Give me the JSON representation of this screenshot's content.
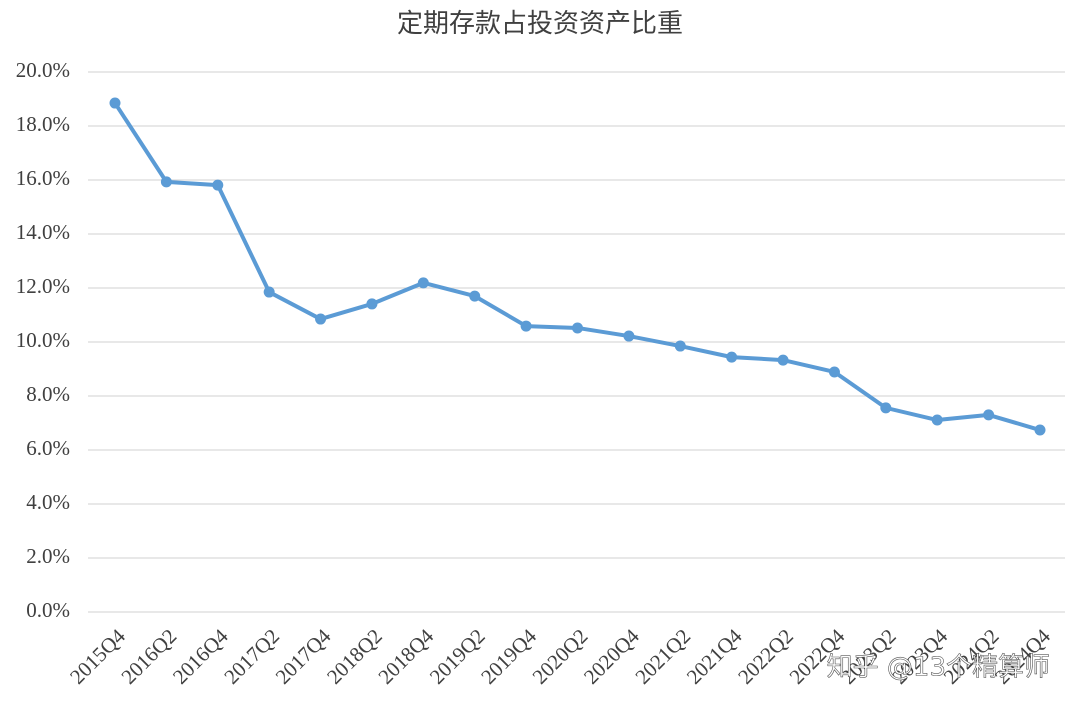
{
  "chart_data": {
    "type": "line",
    "title": "定期存款占投资资产比重",
    "categories": [
      "2015Q4",
      "2016Q2",
      "2016Q4",
      "2017Q2",
      "2017Q4",
      "2018Q2",
      "2018Q4",
      "2019Q2",
      "2019Q4",
      "2020Q2",
      "2020Q4",
      "2021Q2",
      "2021Q4",
      "2022Q2",
      "2022Q4",
      "2023Q2",
      "2023Q4",
      "2024Q2",
      "2024Q4"
    ],
    "values": [
      18.85,
      15.93,
      15.81,
      11.85,
      10.85,
      11.41,
      12.19,
      11.7,
      10.59,
      10.52,
      10.22,
      9.85,
      9.44,
      9.33,
      8.89,
      7.56,
      7.11,
      7.3,
      6.74
    ],
    "color": "#5b9bd5",
    "ylim": [
      0,
      20
    ],
    "yticks": [
      {
        "value": 0,
        "label": "0.0%"
      },
      {
        "value": 2,
        "label": "2.0%"
      },
      {
        "value": 4,
        "label": "4.0%"
      },
      {
        "value": 6,
        "label": "6.0%"
      },
      {
        "value": 8,
        "label": "8.0%"
      },
      {
        "value": 10,
        "label": "10.0%"
      },
      {
        "value": 12,
        "label": "12.0%"
      },
      {
        "value": 14,
        "label": "14.0%"
      },
      {
        "value": 16,
        "label": "16.0%"
      },
      {
        "value": 18,
        "label": "18.0%"
      },
      {
        "value": 20,
        "label": "20.0%"
      }
    ],
    "grid": true,
    "watermark": "知乎 @13个精算师"
  }
}
